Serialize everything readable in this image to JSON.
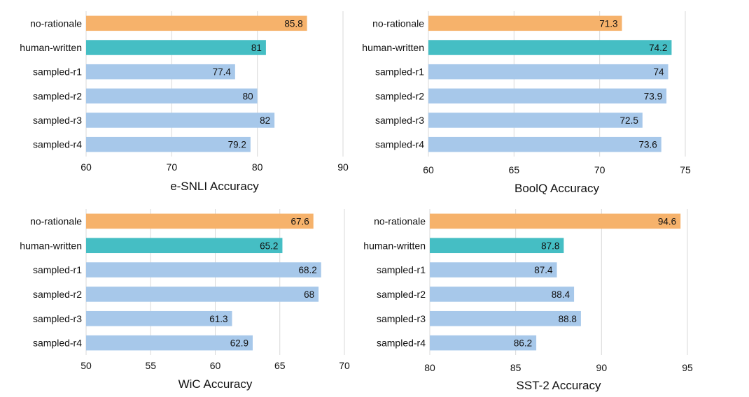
{
  "colors": {
    "no-rationale": "#f6b26b",
    "human-written": "#45bec4",
    "sampled": "#a7c8ea",
    "grid": "#d9d9d9"
  },
  "chart_data": [
    {
      "type": "bar",
      "orientation": "horizontal",
      "xlabel": "e-SNLI Accuracy",
      "categories": [
        "no-rationale",
        "human-written",
        "sampled-r1",
        "sampled-r2",
        "sampled-r3",
        "sampled-r4"
      ],
      "values": [
        85.8,
        81,
        77.4,
        80,
        82,
        79.2
      ],
      "value_labels": [
        "85.8",
        "81",
        "77.4",
        "80",
        "82",
        "79.2"
      ],
      "xlim": [
        60,
        90
      ],
      "xticks": [
        60,
        70,
        80,
        90
      ],
      "grid": true
    },
    {
      "type": "bar",
      "orientation": "horizontal",
      "xlabel": "BoolQ Accuracy",
      "categories": [
        "no-rationale",
        "human-written",
        "sampled-r1",
        "sampled-r2",
        "sampled-r3",
        "sampled-r4"
      ],
      "values": [
        71.3,
        74.2,
        74,
        73.9,
        72.5,
        73.6
      ],
      "value_labels": [
        "71.3",
        "74.2",
        "74",
        "73.9",
        "72.5",
        "73.6"
      ],
      "xlim": [
        60,
        75
      ],
      "xticks": [
        60,
        65,
        70,
        75
      ],
      "grid": true
    },
    {
      "type": "bar",
      "orientation": "horizontal",
      "xlabel": "WiC Accuracy",
      "categories": [
        "no-rationale",
        "human-written",
        "sampled-r1",
        "sampled-r2",
        "sampled-r3",
        "sampled-r4"
      ],
      "values": [
        67.6,
        65.2,
        68.2,
        68,
        61.3,
        62.9
      ],
      "value_labels": [
        "67.6",
        "65.2",
        "68.2",
        "68",
        "61.3",
        "62.9"
      ],
      "xlim": [
        50,
        70
      ],
      "xticks": [
        50,
        55,
        60,
        65,
        70
      ],
      "grid": true
    },
    {
      "type": "bar",
      "orientation": "horizontal",
      "xlabel": "SST-2 Accuracy",
      "categories": [
        "no-rationale",
        "human-written",
        "sampled-r1",
        "sampled-r2",
        "sampled-r3",
        "sampled-r4"
      ],
      "values": [
        94.6,
        87.8,
        87.4,
        88.4,
        88.8,
        86.2
      ],
      "value_labels": [
        "94.6",
        "87.8",
        "87.4",
        "88.4",
        "88.8",
        "86.2"
      ],
      "xlim": [
        80,
        95
      ],
      "xticks": [
        80,
        85,
        90,
        95
      ],
      "grid": true
    }
  ]
}
